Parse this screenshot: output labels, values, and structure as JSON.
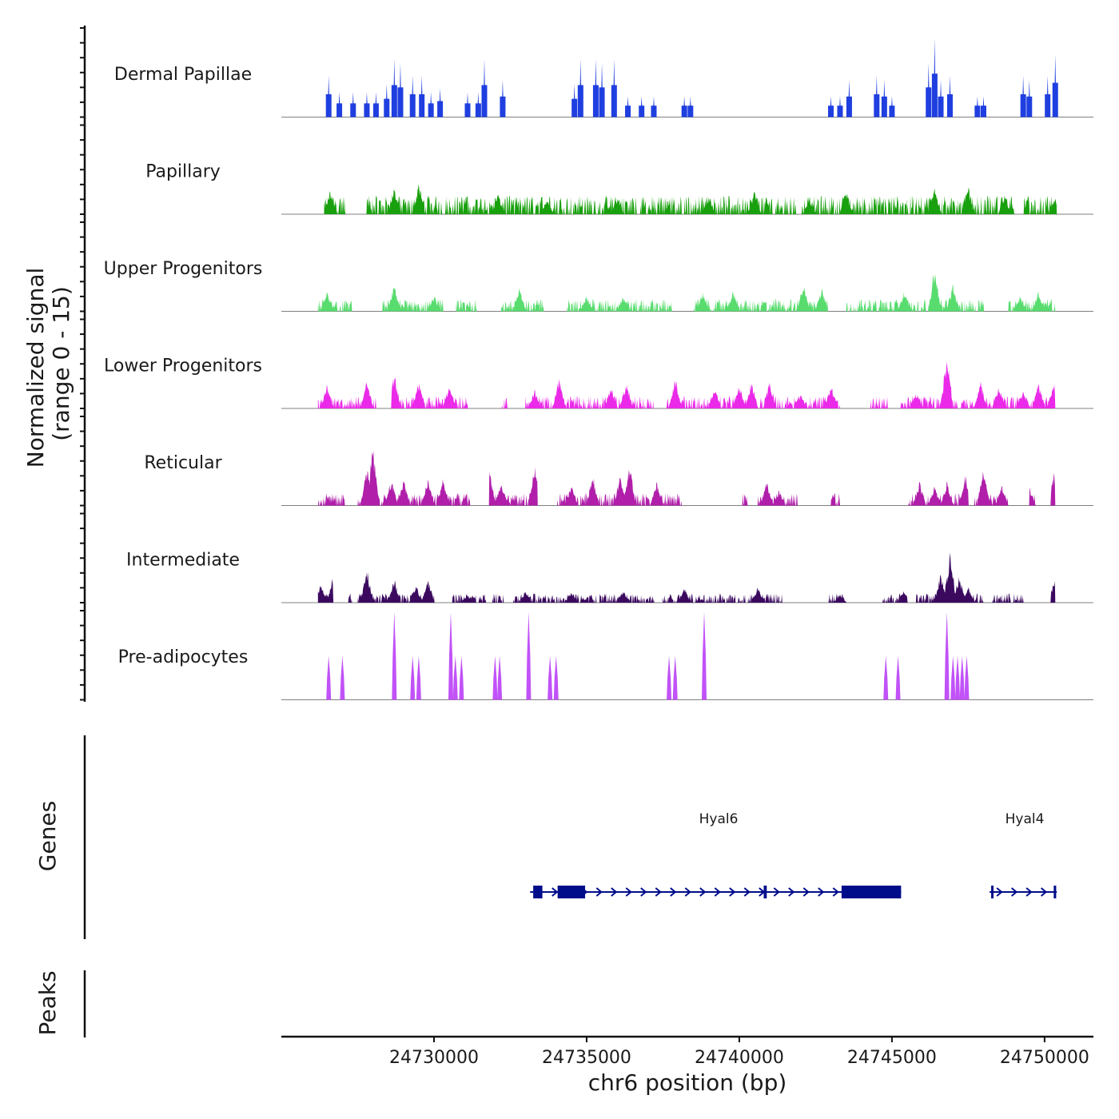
{
  "chart_data": {
    "type": "area",
    "panels": {
      "coverage": {
        "ylabel_line1": "Normalized signal",
        "ylabel_line2": "(range 0 - 15)",
        "ylim": [
          0,
          15
        ],
        "tracks": [
          {
            "name": "Dermal Papillae",
            "color": "#1f3fe0",
            "peaks": [
              [
                24726550,
                10
              ],
              [
                24726900,
                6
              ],
              [
                24727350,
                6
              ],
              [
                24727800,
                6
              ],
              [
                24728100,
                6
              ],
              [
                24728450,
                8
              ],
              [
                24728700,
                14
              ],
              [
                24728900,
                13
              ],
              [
                24729300,
                10
              ],
              [
                24729600,
                10
              ],
              [
                24729900,
                6
              ],
              [
                24730200,
                7
              ],
              [
                24731100,
                6
              ],
              [
                24731450,
                6
              ],
              [
                24731650,
                14
              ],
              [
                24732250,
                9
              ],
              [
                24734600,
                8
              ],
              [
                24734800,
                14
              ],
              [
                24735300,
                14
              ],
              [
                24735500,
                13
              ],
              [
                24735900,
                14
              ],
              [
                24736350,
                5
              ],
              [
                24736800,
                5
              ],
              [
                24737200,
                5
              ],
              [
                24738200,
                5
              ],
              [
                24738400,
                5
              ],
              [
                24743000,
                5
              ],
              [
                24743300,
                5
              ],
              [
                24743600,
                9
              ],
              [
                24744500,
                10
              ],
              [
                24744750,
                9
              ],
              [
                24745000,
                5
              ],
              [
                24746200,
                13
              ],
              [
                24746400,
                20
              ],
              [
                24746600,
                9
              ],
              [
                24746900,
                10
              ],
              [
                24747800,
                5
              ],
              [
                24748000,
                5
              ],
              [
                24749300,
                10
              ],
              [
                24749500,
                9
              ],
              [
                24750100,
                10
              ],
              [
                24750350,
                15
              ]
            ]
          },
          {
            "name": "Papillary",
            "color": "#19a00e",
            "band": [
              24726400,
              24750400
            ],
            "gaps": [
              [
                24727100,
                24727800
              ],
              [
                24736650,
                24736750
              ],
              [
                24741850,
                24742050
              ],
              [
                24749000,
                24749300
              ]
            ],
            "base": 3,
            "peaks": [
              [
                24726600,
                6
              ],
              [
                24728700,
                7
              ],
              [
                24729500,
                8
              ],
              [
                24732100,
                5
              ],
              [
                24733700,
                4
              ],
              [
                24736000,
                4
              ],
              [
                24739000,
                5
              ],
              [
                24740500,
                6
              ],
              [
                24742300,
                4
              ],
              [
                24743500,
                6
              ],
              [
                24746400,
                7
              ],
              [
                24747500,
                7
              ],
              [
                24748700,
                5
              ],
              [
                24750350,
                4
              ]
            ]
          },
          {
            "name": "Upper Progenitors",
            "color": "#58dc6e",
            "band": [
              24726200,
              24750350
            ],
            "gaps": [
              [
                24727300,
                24728300
              ],
              [
                24730300,
                24730700
              ],
              [
                24731400,
                24732200
              ],
              [
                24733600,
                24734300
              ],
              [
                24737800,
                24738500
              ],
              [
                24742900,
                24743500
              ],
              [
                24748000,
                24748800
              ]
            ],
            "base": 2,
            "peaks": [
              [
                24726500,
                5
              ],
              [
                24728700,
                7
              ],
              [
                24730000,
                4
              ],
              [
                24732800,
                6
              ],
              [
                24735000,
                4
              ],
              [
                24736200,
                4
              ],
              [
                24738800,
                5
              ],
              [
                24739800,
                5
              ],
              [
                24742100,
                7
              ],
              [
                24742700,
                6
              ],
              [
                24745400,
                5
              ],
              [
                24746400,
                11
              ],
              [
                24747000,
                7
              ],
              [
                24748100,
                4
              ],
              [
                24749200,
                4
              ],
              [
                24749800,
                5
              ]
            ]
          },
          {
            "name": "Lower Progenitors",
            "color": "#ea2ae8",
            "band": [
              24726200,
              24750350
            ],
            "gaps": [
              [
                24728100,
                24728600
              ],
              [
                24731100,
                24732200
              ],
              [
                24732400,
                24733000
              ],
              [
                24737200,
                24737600
              ],
              [
                24743300,
                24744300
              ],
              [
                24744900,
                24745200
              ]
            ],
            "base": 2,
            "peaks": [
              [
                24726500,
                6
              ],
              [
                24727800,
                7
              ],
              [
                24728700,
                9
              ],
              [
                24729500,
                7
              ],
              [
                24730500,
                6
              ],
              [
                24733300,
                5
              ],
              [
                24734100,
                8
              ],
              [
                24735800,
                6
              ],
              [
                24736300,
                7
              ],
              [
                24737900,
                8
              ],
              [
                24739200,
                5
              ],
              [
                24740000,
                6
              ],
              [
                24740400,
                7
              ],
              [
                24741000,
                7
              ],
              [
                24742000,
                4
              ],
              [
                24743000,
                6
              ],
              [
                24745800,
                4
              ],
              [
                24746800,
                14
              ],
              [
                24747900,
                7
              ],
              [
                24748500,
                6
              ],
              [
                24749300,
                5
              ],
              [
                24749800,
                7
              ],
              [
                24750300,
                7
              ]
            ]
          },
          {
            "name": "Reticular",
            "color": "#b01eaa",
            "band": [
              24726200,
              24750350
            ],
            "gaps": [
              [
                24727100,
                24727500
              ],
              [
                24731200,
                24731800
              ],
              [
                24733400,
                24734000
              ],
              [
                24738100,
                24740100
              ],
              [
                24740300,
                24740600
              ],
              [
                24741900,
                24743000
              ],
              [
                24743300,
                24745500
              ],
              [
                24747500,
                24747700
              ],
              [
                24748800,
                24749500
              ],
              [
                24749700,
                24750200
              ]
            ],
            "base": 2,
            "peaks": [
              [
                24727800,
                10
              ],
              [
                24728000,
                15
              ],
              [
                24728600,
                7
              ],
              [
                24729000,
                7
              ],
              [
                24729800,
                7
              ],
              [
                24730300,
                7
              ],
              [
                24731800,
                10
              ],
              [
                24732200,
                6
              ],
              [
                24733300,
                10
              ],
              [
                24734500,
                5
              ],
              [
                24735200,
                8
              ],
              [
                24736100,
                8
              ],
              [
                24736400,
                11
              ],
              [
                24737300,
                6
              ],
              [
                24740900,
                6
              ],
              [
                24741300,
                4
              ],
              [
                24745900,
                6
              ],
              [
                24746400,
                5
              ],
              [
                24746800,
                6
              ],
              [
                24747400,
                8
              ],
              [
                24748000,
                10
              ],
              [
                24748600,
                5
              ],
              [
                24749500,
                5
              ],
              [
                24750300,
                8
              ]
            ]
          },
          {
            "name": "Intermediate",
            "color": "#3b0a5f",
            "band": [
              24726200,
              24750350
            ],
            "gaps": [
              [
                24726700,
                24727200
              ],
              [
                24727300,
                24727500
              ],
              [
                24730000,
                24730600
              ],
              [
                24731700,
                24731900
              ],
              [
                24732300,
                24732600
              ],
              [
                24737200,
                24737500
              ],
              [
                24741400,
                24742900
              ],
              [
                24743500,
                24744700
              ],
              [
                24745500,
                24745800
              ],
              [
                24748000,
                24748300
              ],
              [
                24749300,
                24750200
              ]
            ],
            "base": 1.5,
            "peaks": [
              [
                24726300,
                5
              ],
              [
                24726700,
                7
              ],
              [
                24727800,
                9
              ],
              [
                24728700,
                6
              ],
              [
                24729400,
                5
              ],
              [
                24729800,
                6
              ],
              [
                24731100,
                2
              ],
              [
                24733000,
                3
              ],
              [
                24734500,
                3
              ],
              [
                24736200,
                3
              ],
              [
                24738200,
                4
              ],
              [
                24740600,
                4
              ],
              [
                24743300,
                2
              ],
              [
                24745400,
                3
              ],
              [
                24746600,
                8
              ],
              [
                24746900,
                13
              ],
              [
                24747200,
                7
              ],
              [
                24747500,
                4
              ],
              [
                24750350,
                7
              ]
            ]
          },
          {
            "name": "Pre-adipocytes",
            "color": "#c152f7",
            "spikes": [
              [
                24726550,
                7
              ],
              [
                24727000,
                7
              ],
              [
                24728700,
                14
              ],
              [
                24729300,
                7
              ],
              [
                24729500,
                7
              ],
              [
                24730550,
                14
              ],
              [
                24730700,
                7
              ],
              [
                24730900,
                7
              ],
              [
                24732000,
                7
              ],
              [
                24732150,
                7
              ],
              [
                24733100,
                14
              ],
              [
                24733800,
                7
              ],
              [
                24734000,
                7
              ],
              [
                24737700,
                7
              ],
              [
                24737900,
                7
              ],
              [
                24738850,
                14
              ],
              [
                24744800,
                7
              ],
              [
                24745200,
                7
              ],
              [
                24746800,
                14
              ],
              [
                24747000,
                7
              ],
              [
                24747150,
                7
              ],
              [
                24747300,
                7
              ],
              [
                24747450,
                7
              ]
            ]
          }
        ]
      },
      "genes": {
        "ylabel": "Genes",
        "items": [
          {
            "name": "Hyal6",
            "start": 24733150,
            "end": 24745300,
            "strand": "+",
            "exons": [
              [
                24733250,
                24733550
              ],
              [
                24734050,
                24734950
              ],
              [
                24740800,
                24740900
              ],
              [
                24743350,
                24745300
              ]
            ]
          },
          {
            "name": "Hyal4",
            "start": 24748200,
            "end": 24750400,
            "strand": "+",
            "exons": [
              [
                24748250,
                24748320
              ],
              [
                24750300,
                24750380
              ]
            ]
          }
        ]
      },
      "peaks": {
        "ylabel": "Peaks"
      }
    },
    "x": {
      "label": "chr6 position (bp)",
      "range": [
        24725000,
        24751600
      ],
      "ticks": [
        "24730000",
        "24735000",
        "24740000",
        "24745000",
        "24750000"
      ]
    }
  }
}
